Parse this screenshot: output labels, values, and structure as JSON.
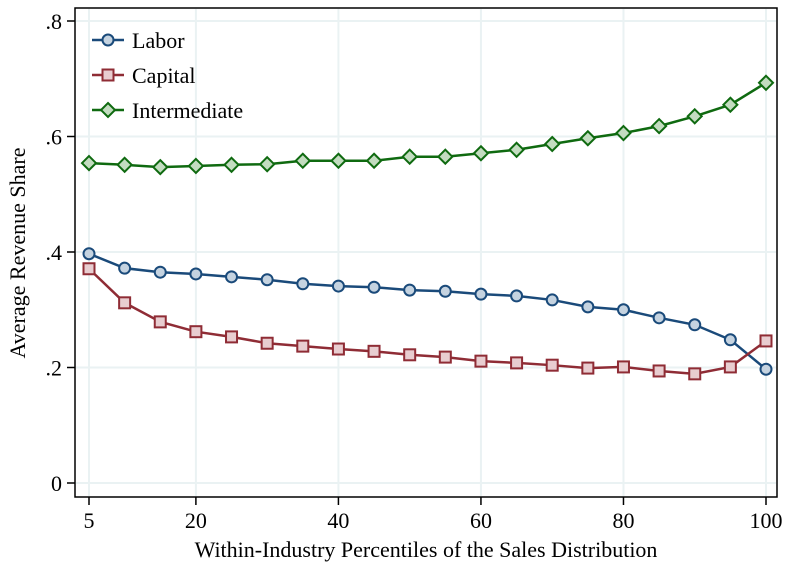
{
  "chart_data": {
    "type": "line",
    "title": "",
    "xlabel": "Within-Industry Percentiles of the Sales Distribution",
    "ylabel": "Average Revenue Share",
    "xlim": [
      3,
      102
    ],
    "ylim": [
      -0.02,
      0.82
    ],
    "xticks": [
      5,
      20,
      40,
      60,
      80,
      100
    ],
    "xtick_labels": [
      "5",
      "20",
      "40",
      "60",
      "80",
      "100"
    ],
    "yticks": [
      0,
      0.2,
      0.4,
      0.6,
      0.8
    ],
    "ytick_labels": [
      "0",
      ".2",
      ".4",
      ".6",
      ".8"
    ],
    "grid": true,
    "legend_position": "top-left",
    "x": [
      5,
      10,
      15,
      20,
      25,
      30,
      35,
      40,
      45,
      50,
      55,
      60,
      65,
      70,
      75,
      80,
      85,
      90,
      95,
      100
    ],
    "series": [
      {
        "name": "Labor",
        "marker": "circle",
        "color": "#1a4a7a",
        "fill": "#c5d3e0",
        "values": [
          0.397,
          0.372,
          0.365,
          0.362,
          0.357,
          0.352,
          0.345,
          0.341,
          0.339,
          0.334,
          0.332,
          0.327,
          0.324,
          0.317,
          0.305,
          0.3,
          0.286,
          0.274,
          0.248,
          0.197
        ]
      },
      {
        "name": "Capital",
        "marker": "square",
        "color": "#8f2c35",
        "fill": "#e8cdd0",
        "values": [
          0.371,
          0.312,
          0.279,
          0.262,
          0.253,
          0.242,
          0.237,
          0.232,
          0.228,
          0.222,
          0.218,
          0.211,
          0.208,
          0.204,
          0.199,
          0.201,
          0.194,
          0.189,
          0.201,
          0.246
        ]
      },
      {
        "name": "Intermediate",
        "marker": "diamond",
        "color": "#0f6a10",
        "fill": "#c3dcc0",
        "values": [
          0.554,
          0.551,
          0.547,
          0.549,
          0.551,
          0.552,
          0.558,
          0.558,
          0.558,
          0.565,
          0.565,
          0.571,
          0.577,
          0.587,
          0.597,
          0.606,
          0.618,
          0.635,
          0.655,
          0.693
        ]
      }
    ]
  }
}
